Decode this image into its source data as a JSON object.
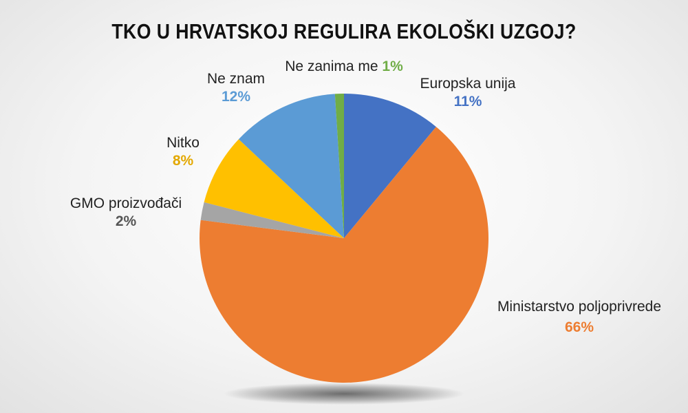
{
  "chart_data": {
    "type": "pie",
    "title": "TKO U HRVATSKOJ REGULIRA EKOLOŠKI UZGOJ?",
    "start_angle_deg": 0,
    "direction": "clockwise",
    "slices": [
      {
        "name": "Europska unija",
        "value": 11,
        "label": "11%",
        "color": "#4472C4"
      },
      {
        "name": "Ministarstvo poljoprivrede",
        "value": 66,
        "label": "66%",
        "color": "#ED7D31"
      },
      {
        "name": "GMO proizvođači",
        "value": 2,
        "label": "2%",
        "color": "#A5A5A5",
        "label_color": "#555555"
      },
      {
        "name": "Nitko",
        "value": 8,
        "label": "8%",
        "color": "#FFC000",
        "label_color": "#E3A800"
      },
      {
        "name": "Ne znam",
        "value": 12,
        "label": "12%",
        "color": "#5B9BD5"
      },
      {
        "name": "Ne zanima me",
        "value": 1,
        "label": "1%",
        "color": "#70AD47"
      }
    ]
  }
}
